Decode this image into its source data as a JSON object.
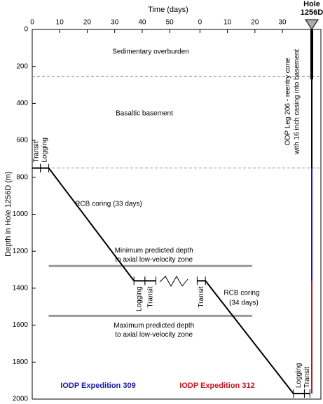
{
  "chart_data": {
    "type": "line",
    "x_label": "Time (days)",
    "y_label": "Depth in Hole 1256D (m)",
    "hole_label": [
      "Hole",
      "1256D"
    ],
    "xlim": [
      0,
      105
    ],
    "ylim": [
      0,
      2000
    ],
    "y_inverted": true,
    "xticks": [
      0,
      10,
      20,
      30,
      40,
      50,
      {
        "value": 61,
        "label": "0"
      },
      {
        "value": 71,
        "label": "10"
      },
      {
        "value": 81,
        "label": "20"
      },
      {
        "value": 91,
        "label": "30"
      }
    ],
    "yticks": [
      0,
      200,
      400,
      600,
      800,
      1000,
      1200,
      1400,
      1600,
      1800,
      2000
    ],
    "x": [
      0,
      6,
      37,
      45,
      53,
      60,
      63,
      95,
      101
    ],
    "values": [
      750,
      750,
      1360,
      1360,
      null,
      1360,
      1360,
      1970,
      1970
    ],
    "color": "#000000",
    "reference_lines": [
      255,
      750
    ],
    "predicted_depths": [
      {
        "value": 1280,
        "start": 6,
        "end": 80,
        "color": "#999999",
        "label": [
          "Minimum predicted depth",
          "to axial low-velocity zone"
        ]
      },
      {
        "value": 1550,
        "start": 6,
        "end": 80,
        "color": "#999999",
        "label": [
          "Maximum predicted depth",
          "to axial low-velocity zone"
        ]
      }
    ],
    "phases": [
      {
        "label": "Transit",
        "start": 0,
        "end": 3,
        "depth": 750,
        "side": "above"
      },
      {
        "label": "Logging",
        "start": 3,
        "end": 6,
        "depth": 750,
        "side": "above"
      },
      {
        "label": "Logging",
        "start": 37,
        "end": 41,
        "depth": 1360,
        "side": "below"
      },
      {
        "label": "Transit",
        "start": 41,
        "end": 45,
        "depth": 1360,
        "side": "below"
      },
      {
        "label": "Transit",
        "start": 60,
        "end": 63,
        "depth": 1360,
        "side": "below"
      },
      {
        "label": "Logging",
        "start": 95,
        "end": 99,
        "depth": 1970,
        "side": "above"
      },
      {
        "label": "Transit",
        "start": 99,
        "end": 101,
        "depth": 1970,
        "side": "above"
      }
    ],
    "hole": {
      "casing_depth": 270,
      "bottom": 1970,
      "casing_label": [
        "ODP Leg 206 - reentry cone",
        "with 16 inch casing into basement"
      ],
      "expeditions": [
        {
          "name": "IODP Expedition 309",
          "color": "#1a1aa8",
          "top": 750,
          "bottom": 1360
        },
        {
          "name": "IODP Expedition 312",
          "color": "#c8161d",
          "top": 1360,
          "bottom": 1970
        }
      ]
    },
    "annotations": [
      [
        "Sedimentary overburden"
      ],
      [
        "Basaltic basement"
      ],
      [
        "RCB coring (33 days)"
      ],
      [
        "RCB coring",
        "(34 days)"
      ]
    ]
  }
}
